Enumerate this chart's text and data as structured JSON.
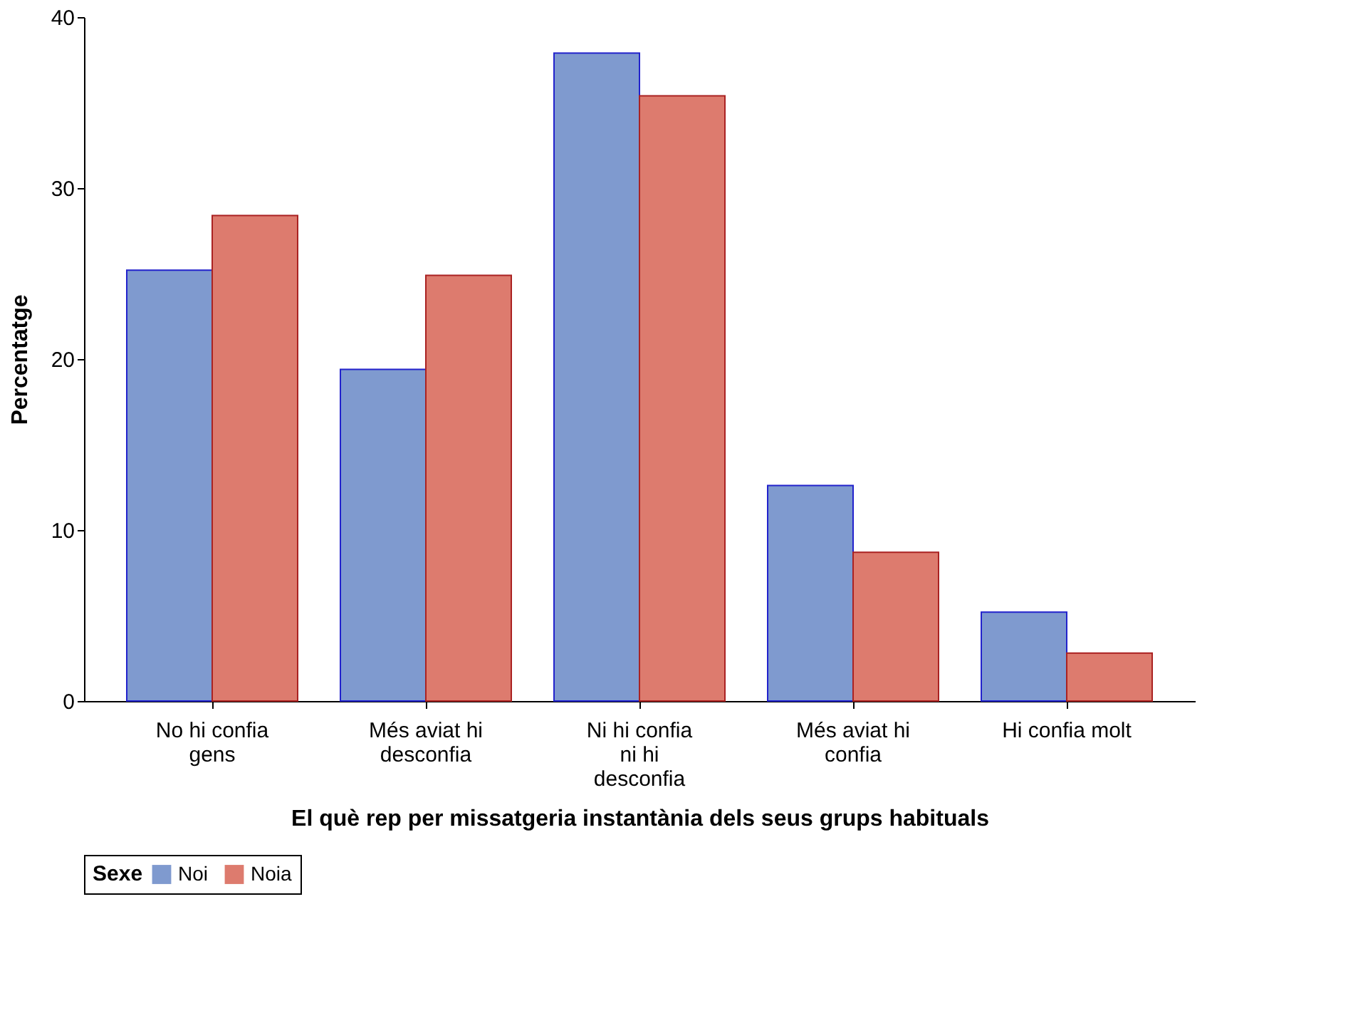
{
  "chart_data": {
    "type": "bar",
    "xlabel": "El què rep per missatgeria instantània dels seus grups habituals",
    "ylabel": "Percentatge",
    "legend_title": "Sexe",
    "categories": [
      "No hi confia gens",
      "Més aviat hi desconfia",
      "Ni hi confia ni hi desconfia",
      "Més aviat hi confia",
      "Hi confia molt"
    ],
    "series": [
      {
        "name": "Noi",
        "color": "#7f9acf",
        "values": [
          25.2,
          19.4,
          37.9,
          12.6,
          5.2
        ]
      },
      {
        "name": "Noia",
        "color": "#dd7b6e",
        "values": [
          28.4,
          24.9,
          35.4,
          8.7,
          2.8
        ]
      }
    ],
    "ylim": [
      0,
      40
    ],
    "yticks": [
      0,
      10,
      20,
      30,
      40
    ],
    "grid": false,
    "legend": "bottom"
  }
}
